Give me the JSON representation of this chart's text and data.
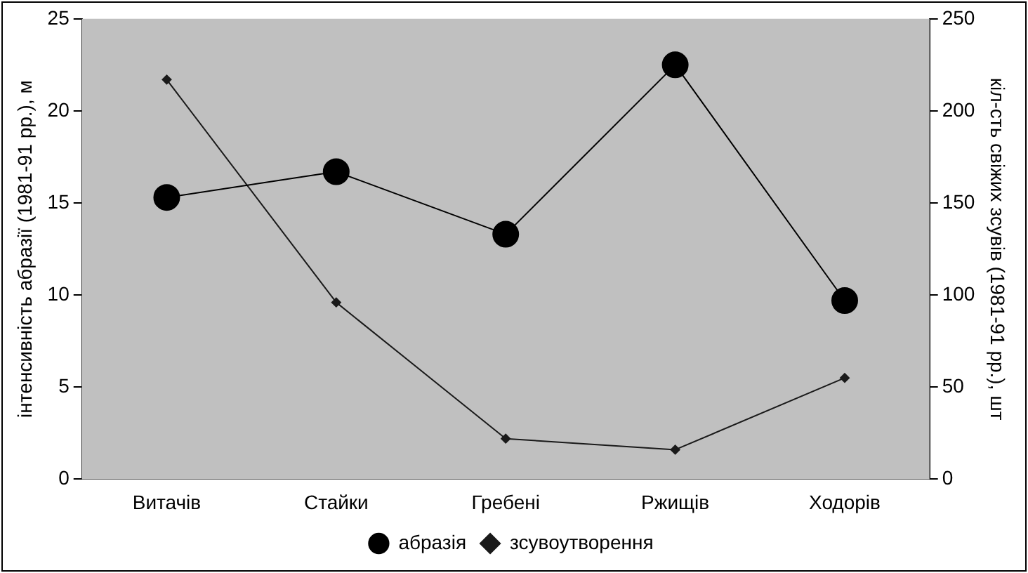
{
  "chart_data": {
    "type": "line",
    "ylabel": "інтенсивність абразії (1981-91 рр.), м",
    "y2label": "кіл-сть свіжих зсувів (1981-91 рр.), шт",
    "categories": [
      "Витачів",
      "Стайки",
      "Гребені",
      "Ржищів",
      "Ходорів"
    ],
    "series": [
      {
        "name": "абразія",
        "color": "#000000",
        "values": [
          15.3,
          16.7,
          13.3,
          22.5,
          9.7
        ],
        "marker": "circle"
      },
      {
        "name": "зсувоутворення",
        "color": "#1a1a1a",
        "values": [
          217,
          96,
          22,
          16,
          55
        ],
        "axis": "y2",
        "marker": "diamond"
      }
    ],
    "ylim": [
      0,
      25
    ],
    "yticks": [
      0,
      5,
      10,
      15,
      20,
      25
    ],
    "y2lim": [
      0,
      250
    ],
    "y2ticks": [
      0,
      50,
      100,
      150,
      200,
      250
    ],
    "grid": false,
    "legend": "bottom"
  }
}
